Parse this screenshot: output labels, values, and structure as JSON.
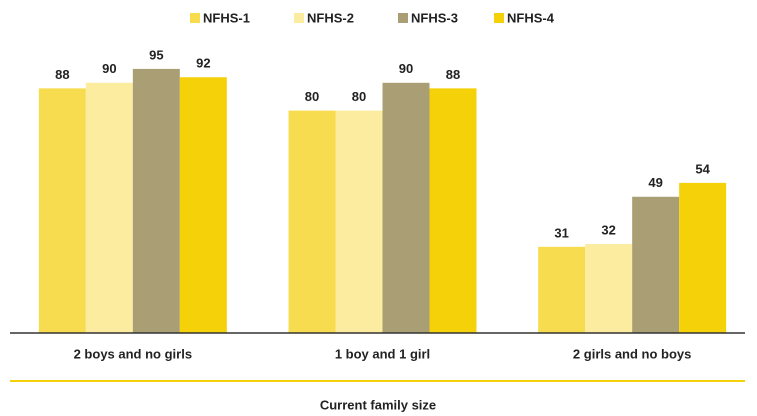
{
  "chart_data": {
    "type": "bar",
    "categories": [
      "2 boys and no girls",
      "1 boy and 1 girl",
      "2 girls and no boys"
    ],
    "series": [
      {
        "name": "NFHS-1",
        "color": "#f7dc4f",
        "values": [
          88,
          80,
          31
        ]
      },
      {
        "name": "NFHS-2",
        "color": "#fcec9f",
        "values": [
          90,
          80,
          32
        ]
      },
      {
        "name": "NFHS-3",
        "color": "#a99e74",
        "values": [
          95,
          90,
          49
        ]
      },
      {
        "name": "NFHS-4",
        "color": "#f5d10a",
        "values": [
          92,
          88,
          54
        ]
      }
    ],
    "xlabel": "Current family size",
    "legend": "top"
  }
}
